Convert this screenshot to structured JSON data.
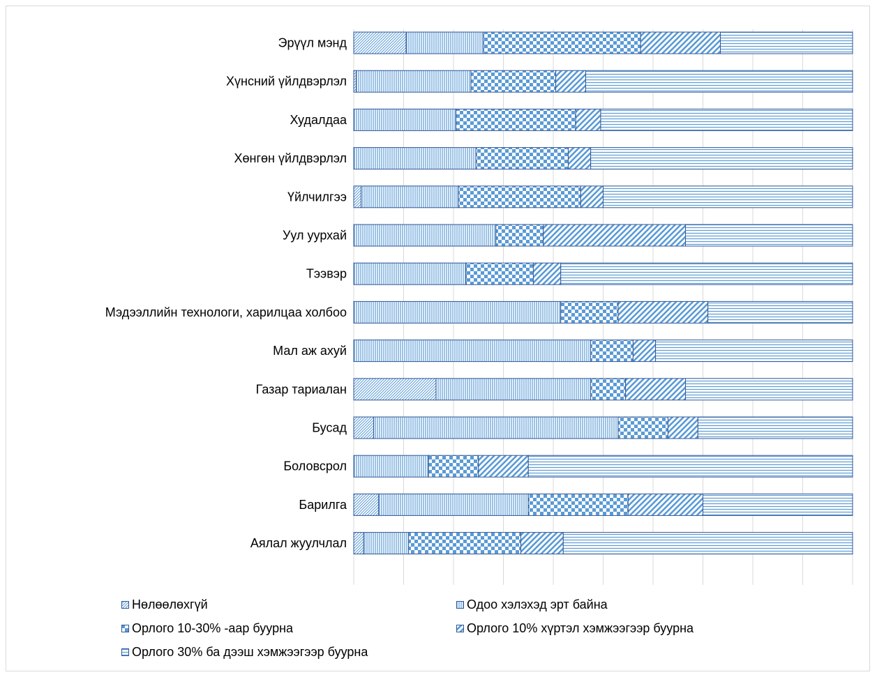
{
  "chart_data": {
    "type": "bar",
    "orientation": "horizontal",
    "stacked": "percent",
    "categories": [
      "Эрүүл мэнд",
      "Хүнсний үйлдвэрлэл",
      "Худалдаа",
      "Хөнгөн үйлдвэрлэл",
      "Үйлчилгээ",
      "Уул уурхай",
      "Тээвэр",
      "Мэдээллийн технологи, харилцаа холбоо",
      "Мал аж ахуй",
      "Газар тариалан",
      "Бусад",
      "Боловсрол",
      "Барилга",
      "Аялал жуулчлал"
    ],
    "series": [
      {
        "name": "Нөлөөлөхгүй",
        "pattern": "fine-diagonal",
        "values": [
          10.5,
          0.5,
          0,
          0,
          1.5,
          0,
          0,
          0,
          0,
          16.5,
          4,
          0,
          5,
          2
        ]
      },
      {
        "name": "Одоо хэлэхэд эрт байна",
        "pattern": "vertical",
        "values": [
          15.5,
          23,
          20.5,
          24.5,
          19.5,
          28.5,
          22.5,
          41.5,
          47.5,
          31,
          49,
          15,
          30,
          9
        ]
      },
      {
        "name": "Орлого 10-30% -аар буурна",
        "pattern": "checker",
        "values": [
          31.5,
          17,
          24,
          18.5,
          24.5,
          9.5,
          13.5,
          11.5,
          8.5,
          7,
          10,
          10,
          20,
          22.5
        ]
      },
      {
        "name": "Орлого 10% хүртэл хэмжээгээр буурна",
        "pattern": "wide-diagonal",
        "values": [
          16,
          6,
          5,
          4.5,
          4.5,
          28.5,
          5.5,
          18,
          4.5,
          12,
          6,
          10,
          15,
          8.5
        ]
      },
      {
        "name": "Орлого 30% ба дээш хэмжээгээр буурна",
        "pattern": "horizontal",
        "values": [
          26.5,
          53.5,
          50.5,
          52.5,
          50,
          33.5,
          58.5,
          29,
          39.5,
          33.5,
          31,
          65,
          30,
          58
        ]
      }
    ],
    "xlim": [
      0,
      100
    ],
    "grid": true,
    "legend_position": "bottom",
    "colors": {
      "accent": "#5b9bd5",
      "border": "#2f5597",
      "grid": "#d9d9d9"
    }
  }
}
